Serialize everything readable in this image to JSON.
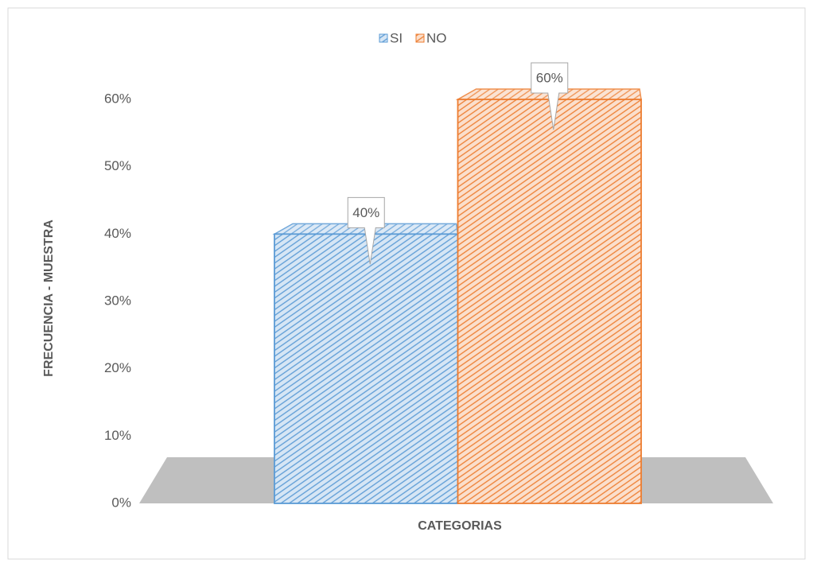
{
  "chart_data": {
    "type": "bar3d",
    "xlabel": "CATEGORIAS",
    "ylabel": "FRECUENCIA - MUESTRA",
    "categories": [
      null
    ],
    "series": [
      {
        "name": "SI",
        "color": "#5b9bd5",
        "values": [
          40
        ],
        "value_labels": [
          "40%"
        ]
      },
      {
        "name": "NO",
        "color": "#ed7d31",
        "values": [
          60
        ],
        "value_labels": [
          "60%"
        ]
      }
    ],
    "ylim": [
      0,
      60
    ],
    "yticks": [
      {
        "value": 0,
        "label": "0%"
      },
      {
        "value": 10,
        "label": "10%"
      },
      {
        "value": 20,
        "label": "20%"
      },
      {
        "value": 30,
        "label": "30%"
      },
      {
        "value": 40,
        "label": "40%"
      },
      {
        "value": 50,
        "label": "50%"
      },
      {
        "value": 60,
        "label": "60%"
      }
    ],
    "legend": "top"
  }
}
